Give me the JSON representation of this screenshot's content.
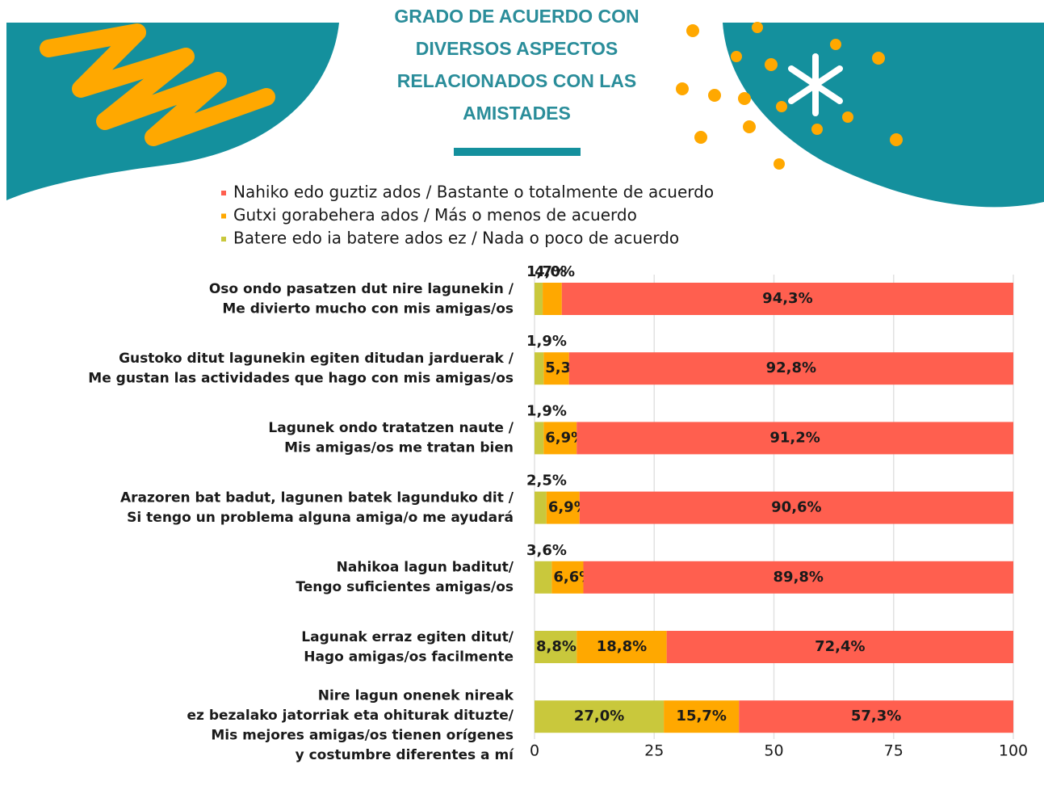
{
  "chart_data": {
    "type": "stacked-bar-horizontal",
    "title": [
      "GRADO DE ACUERDO CON",
      "DIVERSOS ASPECTOS",
      "RELACIONADOS CON LAS",
      "AMISTADES"
    ],
    "categories": [
      [
        "Oso ondo pasatzen dut nire lagunekin /",
        "Me divierto mucho con mis amigas/os"
      ],
      [
        "Gustoko ditut lagunekin egiten ditudan jarduerak /",
        "Me gustan las actividades que hago con mis amigas/os"
      ],
      [
        "Lagunek ondo tratatzen naute /",
        "Mis amigas/os me tratan bien"
      ],
      [
        "Arazoren bat badut, lagunen batek lagunduko dit /",
        "Si tengo un problema alguna amiga/o me ayudará"
      ],
      [
        "Nahikoa lagun baditut/",
        "Tengo suficientes amigas/os"
      ],
      [
        "Lagunak erraz egiten ditut/",
        "Hago amigas/os facilmente"
      ],
      [
        "Nire lagun onenek nireak",
        "ez bezalako jatorriak eta ohiturak dituzte/",
        "Mis mejores amigas/os tienen orígenes",
        "y costumbre diferentes a mí"
      ]
    ],
    "series": [
      {
        "name": "Nahiko edo guztiz ados / Bastante o totalmente de acuerdo",
        "color": "#ff5f4f",
        "values": [
          94.3,
          92.8,
          91.2,
          90.6,
          89.8,
          72.4,
          57.3
        ],
        "value_labels": [
          "94,3%",
          "92,8%",
          "91,2%",
          "90,6%",
          "89,8%",
          "72,4%",
          "57,3%"
        ]
      },
      {
        "name": "Gutxi gorabehera ados / Más o menos de acuerdo",
        "color": "#ffa800",
        "values": [
          4.0,
          5.3,
          6.9,
          6.9,
          6.6,
          18.8,
          15.7
        ],
        "value_labels": [
          "4,0%",
          "5,3%",
          "6,9%",
          "6,9%",
          "6,6%",
          "18,8%",
          "15,7%"
        ]
      },
      {
        "name": "Batere edo ia batere ados ez / Nada o poco de acuerdo",
        "color": "#c9c83c",
        "values": [
          1.7,
          1.9,
          1.9,
          2.5,
          3.6,
          8.8,
          27.0
        ],
        "value_labels": [
          "1,7%",
          "1,9%",
          "1,9%",
          "2,5%",
          "3,6%",
          "8,8%",
          "27,0%"
        ]
      }
    ],
    "xlim": [
      0,
      100
    ],
    "xticks": [
      0,
      25,
      50,
      75,
      100
    ],
    "grid": true
  }
}
